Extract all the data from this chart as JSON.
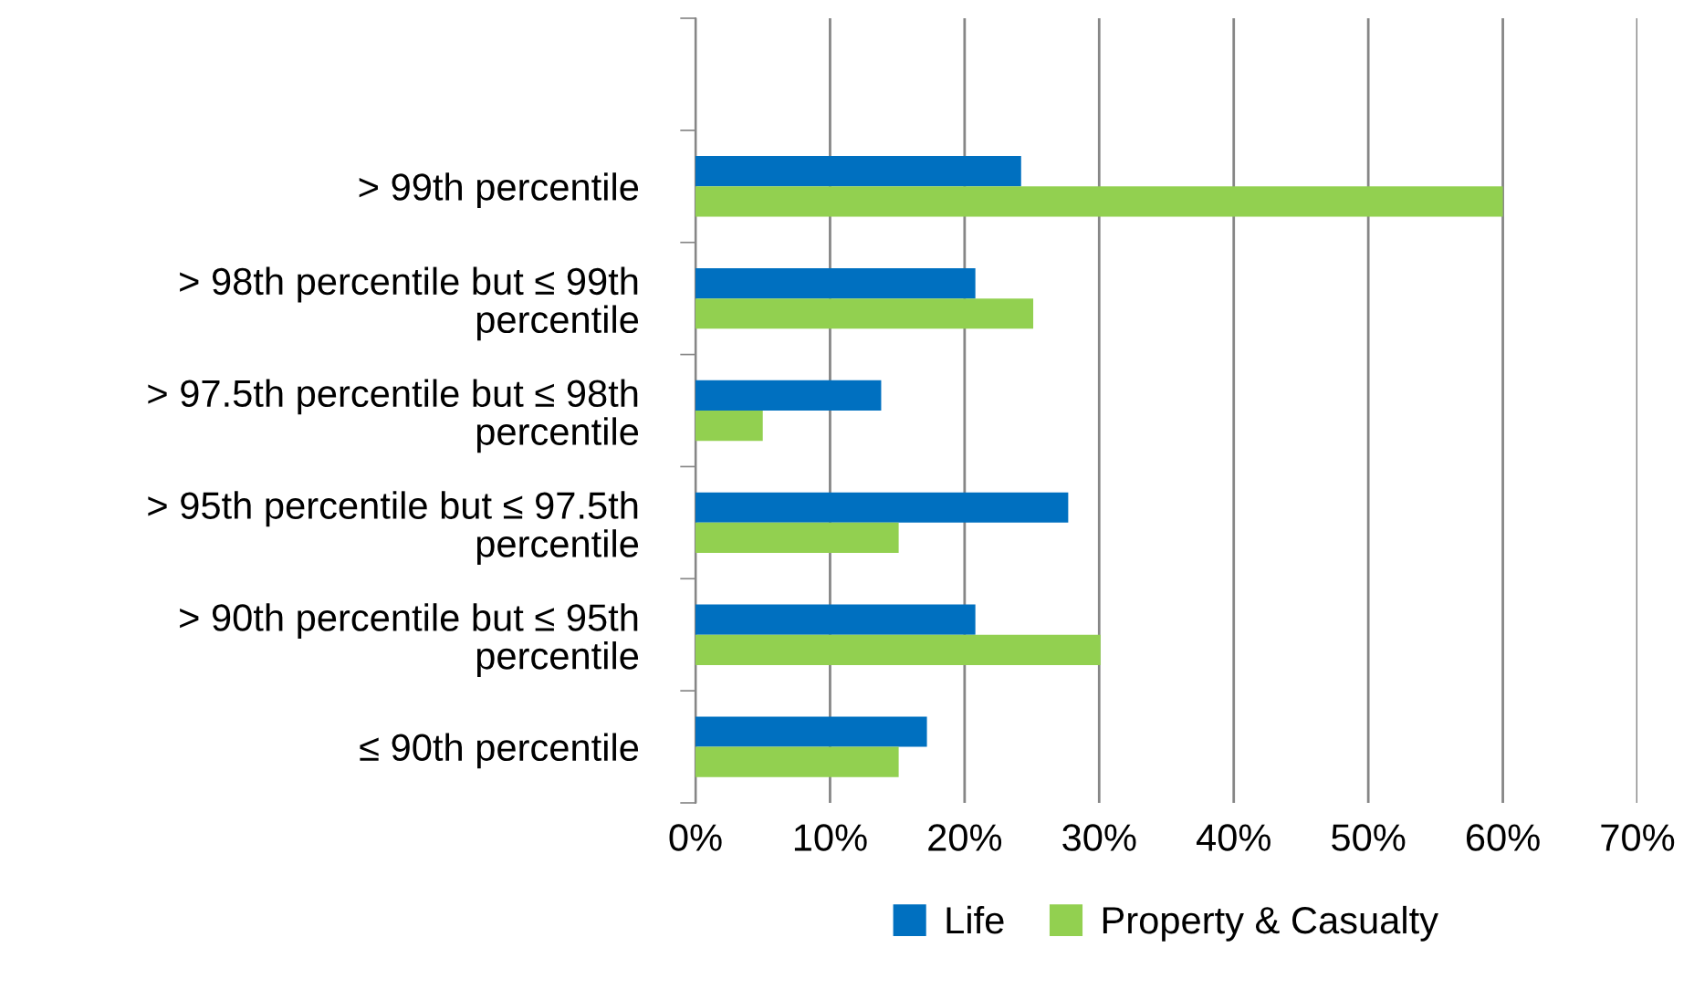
{
  "chart_data": {
    "type": "bar",
    "orientation": "horizontal",
    "categories": [
      null,
      "> 99th percentile",
      "> 98th percentile but ≤ 99th percentile",
      "> 97.5th percentile but ≤ 98th percentile",
      "> 95th percentile but ≤ 97.5th percentile",
      "> 90th percentile but ≤ 95th percentile",
      "≤ 90th percentile"
    ],
    "series": [
      {
        "name": "Life",
        "color": "#0070c0",
        "values": [
          null,
          24.2,
          20.8,
          13.8,
          27.7,
          20.8,
          17.2
        ]
      },
      {
        "name": "Property & Casualty",
        "color": "#92d050",
        "values": [
          null,
          60,
          25.1,
          5.0,
          15.1,
          30.1,
          15.1
        ]
      }
    ],
    "xlim": [
      0,
      70
    ],
    "xticks": [
      {
        "value": 0,
        "label": "0%"
      },
      {
        "value": 10,
        "label": "10%"
      },
      {
        "value": 20,
        "label": "20%"
      },
      {
        "value": 30,
        "label": "30%"
      },
      {
        "value": 40,
        "label": "40%"
      },
      {
        "value": 50,
        "label": "50%"
      },
      {
        "value": 60,
        "label": "60%"
      },
      {
        "value": 70,
        "label": "70%"
      }
    ],
    "grid": "x",
    "legend": "bottom"
  }
}
